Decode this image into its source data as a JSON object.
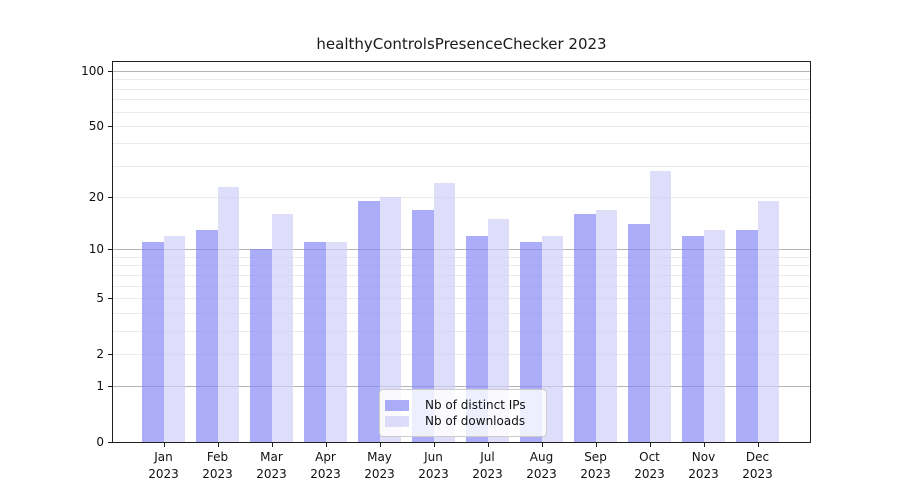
{
  "title": "healthyControlsPresenceChecker 2023",
  "colors": {
    "ips_fill": "rgba(131,132,246,0.67)",
    "downloads_fill": "rgba(206,206,248,0.67)",
    "major_grid": "#b5b5b5",
    "minor_grid": "#ebebeb",
    "axis_frame": "#1f1f1f",
    "text": "#111111",
    "legend_background": "rgba(255,255,255,0.8)",
    "legend_border": "#cccccc"
  },
  "legend": {
    "items": [
      {
        "label": "Nb of distinct IPs",
        "color_key": "ips_fill"
      },
      {
        "label": "Nb of downloads",
        "color_key": "downloads_fill"
      }
    ]
  },
  "y_axis": {
    "scale": "log1p",
    "top_value": 112,
    "tick_labels": [
      100,
      50,
      20,
      10,
      5,
      2,
      1,
      0
    ],
    "major_grid_values": [
      1,
      10,
      100
    ],
    "minor_grid_values": [
      2,
      3,
      4,
      5,
      6,
      7,
      8,
      9,
      20,
      30,
      40,
      50,
      60,
      70,
      80,
      90
    ]
  },
  "x_axis": {
    "months": [
      "Jan",
      "Feb",
      "Mar",
      "Apr",
      "May",
      "Jun",
      "Jul",
      "Aug",
      "Sep",
      "Oct",
      "Nov",
      "Dec"
    ],
    "year_label": "2023"
  },
  "chart_data": {
    "type": "bar",
    "title": "healthyControlsPresenceChecker 2023",
    "categories": [
      "Jan 2023",
      "Feb 2023",
      "Mar 2023",
      "Apr 2023",
      "May 2023",
      "Jun 2023",
      "Jul 2023",
      "Aug 2023",
      "Sep 2023",
      "Oct 2023",
      "Nov 2023",
      "Dec 2023"
    ],
    "series": [
      {
        "name": "Nb of distinct IPs",
        "values": [
          11,
          13,
          10,
          11,
          19,
          17,
          12,
          11,
          16,
          14,
          12,
          13
        ]
      },
      {
        "name": "Nb of downloads",
        "values": [
          12,
          23,
          16,
          11,
          20,
          24,
          15,
          12,
          17,
          28,
          13,
          19
        ]
      }
    ],
    "xlabel": "",
    "ylabel": "",
    "y_scale": "log1p",
    "y_ticks": [
      0,
      1,
      2,
      5,
      10,
      20,
      50,
      100
    ],
    "ylim": [
      0,
      112
    ],
    "grid": true,
    "legend_position": "lower-center-inside"
  }
}
